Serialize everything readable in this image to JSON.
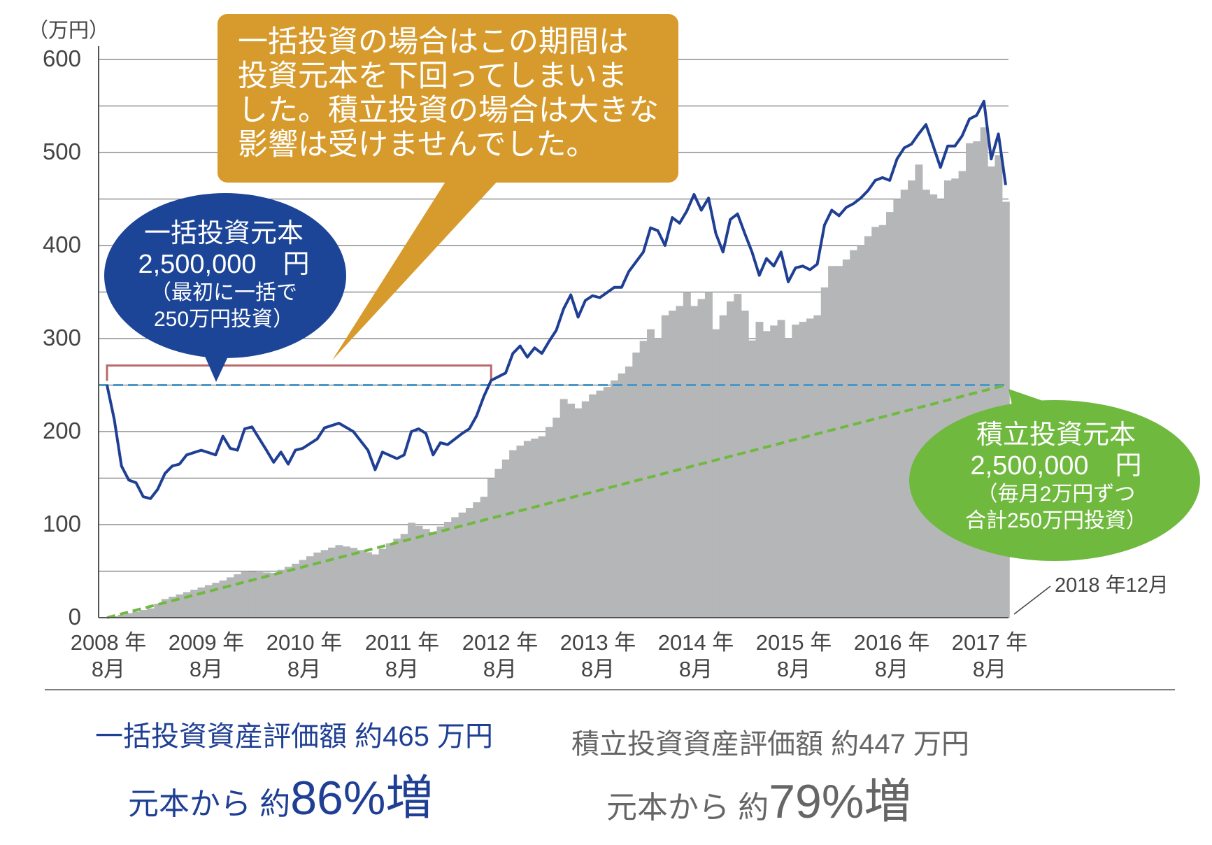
{
  "chart_data": {
    "type": "line+bar",
    "ylabel": "（万円）",
    "ylim": [
      0,
      600
    ],
    "yticks": [
      "0",
      "100",
      "200",
      "300",
      "400",
      "500",
      "600"
    ],
    "grid": true,
    "xticks": [
      {
        "year": "2008 年",
        "month": "8月"
      },
      {
        "year": "2009 年",
        "month": "8月"
      },
      {
        "year": "2010 年",
        "month": "8月"
      },
      {
        "year": "2011 年",
        "month": "8月"
      },
      {
        "year": "2012 年",
        "month": "8月"
      },
      {
        "year": "2013 年",
        "month": "8月"
      },
      {
        "year": "2014 年",
        "month": "8月"
      },
      {
        "year": "2015 年",
        "month": "8月"
      },
      {
        "year": "2016 年",
        "month": "8月"
      },
      {
        "year": "2017 年",
        "month": "8月"
      }
    ],
    "end_label": "2018 年12月",
    "x_range": [
      "2008-08",
      "2018-12"
    ],
    "colors": {
      "lump_sum_line": "#1f3f94",
      "accumulation_bars": "#b4b6b7",
      "lump_principal": "#4a97c9",
      "accum_principal": "#70b93f",
      "bracket": "#b96a6a"
    },
    "lump_sum_principal": 250,
    "accumulation_principal": {
      "start": 0,
      "end": 250
    },
    "lump_sum_value": [
      [
        "2008-08",
        250
      ],
      [
        "2008-09",
        213
      ],
      [
        "2008-10",
        163
      ],
      [
        "2008-11",
        148
      ],
      [
        "2008-12",
        145
      ],
      [
        "2009-01",
        130
      ],
      [
        "2009-02",
        128
      ],
      [
        "2009-03",
        138
      ],
      [
        "2009-04",
        155
      ],
      [
        "2009-05",
        163
      ],
      [
        "2009-06",
        165
      ],
      [
        "2009-07",
        175
      ],
      [
        "2009-09",
        180
      ],
      [
        "2009-11",
        175
      ],
      [
        "2009-12",
        195
      ],
      [
        "2010-01",
        182
      ],
      [
        "2010-02",
        180
      ],
      [
        "2010-03",
        203
      ],
      [
        "2010-04",
        205
      ],
      [
        "2010-06",
        180
      ],
      [
        "2010-07",
        167
      ],
      [
        "2010-08",
        178
      ],
      [
        "2010-09",
        165
      ],
      [
        "2010-10",
        180
      ],
      [
        "2010-11",
        182
      ],
      [
        "2011-01",
        192
      ],
      [
        "2011-02",
        204
      ],
      [
        "2011-04",
        209
      ],
      [
        "2011-06",
        200
      ],
      [
        "2011-08",
        180
      ],
      [
        "2011-09",
        159
      ],
      [
        "2011-10",
        178
      ],
      [
        "2011-12",
        171
      ],
      [
        "2012-01",
        175
      ],
      [
        "2012-02",
        200
      ],
      [
        "2012-03",
        203
      ],
      [
        "2012-04",
        198
      ],
      [
        "2012-05",
        175
      ],
      [
        "2012-06",
        188
      ],
      [
        "2012-07",
        186
      ],
      [
        "2012-09",
        198
      ],
      [
        "2012-10",
        203
      ],
      [
        "2012-11",
        217
      ],
      [
        "2012-12",
        238
      ],
      [
        "2013-01",
        255
      ],
      [
        "2013-03",
        263
      ],
      [
        "2013-04",
        284
      ],
      [
        "2013-05",
        292
      ],
      [
        "2013-06",
        280
      ],
      [
        "2013-07",
        290
      ],
      [
        "2013-08",
        284
      ],
      [
        "2013-09",
        297
      ],
      [
        "2013-10",
        309
      ],
      [
        "2013-11",
        332
      ],
      [
        "2013-12",
        347
      ],
      [
        "2014-01",
        323
      ],
      [
        "2014-02",
        341
      ],
      [
        "2014-03",
        346
      ],
      [
        "2014-04",
        344
      ],
      [
        "2014-06",
        355
      ],
      [
        "2014-07",
        355
      ],
      [
        "2014-08",
        372
      ],
      [
        "2014-10",
        393
      ],
      [
        "2014-11",
        419
      ],
      [
        "2014-12",
        416
      ],
      [
        "2015-01",
        400
      ],
      [
        "2015-02",
        430
      ],
      [
        "2015-03",
        424
      ],
      [
        "2015-04",
        437
      ],
      [
        "2015-05",
        455
      ],
      [
        "2015-06",
        438
      ],
      [
        "2015-07",
        451
      ],
      [
        "2015-08",
        413
      ],
      [
        "2015-09",
        393
      ],
      [
        "2015-10",
        428
      ],
      [
        "2015-11",
        434
      ],
      [
        "2015-12",
        413
      ],
      [
        "2016-01",
        393
      ],
      [
        "2016-02",
        368
      ],
      [
        "2016-03",
        386
      ],
      [
        "2016-04",
        378
      ],
      [
        "2016-05",
        393
      ],
      [
        "2016-06",
        361
      ],
      [
        "2016-07",
        376
      ],
      [
        "2016-08",
        378
      ],
      [
        "2016-09",
        374
      ],
      [
        "2016-10",
        380
      ],
      [
        "2016-11",
        422
      ],
      [
        "2016-12",
        438
      ],
      [
        "2017-01",
        432
      ],
      [
        "2017-02",
        441
      ],
      [
        "2017-03",
        445
      ],
      [
        "2017-04",
        451
      ],
      [
        "2017-05",
        459
      ],
      [
        "2017-06",
        470
      ],
      [
        "2017-07",
        473
      ],
      [
        "2017-08",
        470
      ],
      [
        "2017-09",
        493
      ],
      [
        "2017-10",
        505
      ],
      [
        "2017-11",
        509
      ],
      [
        "2017-12",
        520
      ],
      [
        "2018-01",
        530
      ],
      [
        "2018-02",
        507
      ],
      [
        "2018-03",
        484
      ],
      [
        "2018-04",
        507
      ],
      [
        "2018-05",
        507
      ],
      [
        "2018-06",
        518
      ],
      [
        "2018-07",
        536
      ],
      [
        "2018-08",
        540
      ],
      [
        "2018-09",
        555
      ],
      [
        "2018-10",
        493
      ],
      [
        "2018-11",
        520
      ],
      [
        "2018-12",
        465
      ]
    ],
    "accumulation_value": [
      [
        "2008-08",
        0
      ],
      [
        "2008-10",
        3
      ],
      [
        "2009-02",
        10
      ],
      [
        "2009-04",
        20
      ],
      [
        "2009-08",
        30
      ],
      [
        "2009-12",
        40
      ],
      [
        "2010-03",
        50
      ],
      [
        "2010-07",
        48
      ],
      [
        "2010-10",
        58
      ],
      [
        "2011-01",
        70
      ],
      [
        "2011-04",
        78
      ],
      [
        "2011-06",
        75
      ],
      [
        "2011-09",
        68
      ],
      [
        "2011-11",
        80
      ],
      [
        "2012-01",
        90
      ],
      [
        "2012-02",
        102
      ],
      [
        "2012-05",
        92
      ],
      [
        "2012-06",
        98
      ],
      [
        "2012-08",
        108
      ],
      [
        "2012-10",
        118
      ],
      [
        "2012-12",
        130
      ],
      [
        "2013-01",
        150
      ],
      [
        "2013-02",
        160
      ],
      [
        "2013-04",
        180
      ],
      [
        "2013-06",
        190
      ],
      [
        "2013-08",
        195
      ],
      [
        "2013-10",
        215
      ],
      [
        "2013-11",
        235
      ],
      [
        "2014-01",
        225
      ],
      [
        "2014-03",
        240
      ],
      [
        "2014-05",
        248
      ],
      [
        "2014-06",
        255
      ],
      [
        "2014-08",
        270
      ],
      [
        "2014-09",
        285
      ],
      [
        "2014-11",
        310
      ],
      [
        "2014-12",
        300
      ],
      [
        "2015-01",
        325
      ],
      [
        "2015-03",
        335
      ],
      [
        "2015-04",
        350
      ],
      [
        "2015-05",
        335
      ],
      [
        "2015-07",
        350
      ],
      [
        "2015-08",
        310
      ],
      [
        "2015-10",
        340
      ],
      [
        "2015-11",
        348
      ],
      [
        "2015-12",
        330
      ],
      [
        "2016-01",
        298
      ],
      [
        "2016-02",
        318
      ],
      [
        "2016-03",
        308
      ],
      [
        "2016-05",
        320
      ],
      [
        "2016-06",
        300
      ],
      [
        "2016-07",
        315
      ],
      [
        "2016-08",
        318
      ],
      [
        "2016-10",
        325
      ],
      [
        "2016-11",
        355
      ],
      [
        "2016-12",
        378
      ],
      [
        "2017-01",
        378
      ],
      [
        "2017-02",
        385
      ],
      [
        "2017-03",
        395
      ],
      [
        "2017-04",
        400
      ],
      [
        "2017-05",
        410
      ],
      [
        "2017-06",
        420
      ],
      [
        "2017-07",
        422
      ],
      [
        "2017-09",
        450
      ],
      [
        "2017-10",
        460
      ],
      [
        "2017-11",
        470
      ],
      [
        "2017-12",
        487
      ],
      [
        "2018-01",
        460
      ],
      [
        "2018-03",
        450
      ],
      [
        "2018-04",
        470
      ],
      [
        "2018-05",
        472
      ],
      [
        "2018-06",
        480
      ],
      [
        "2018-07",
        510
      ],
      [
        "2018-08",
        512
      ],
      [
        "2018-09",
        527
      ],
      [
        "2018-10",
        485
      ],
      [
        "2018-11",
        497
      ],
      [
        "2018-12",
        447
      ]
    ]
  },
  "callout": {
    "lines": [
      "一括投資の場合はこの期間は",
      "投資元本を下回ってしまいま",
      "した。積立投資の場合は大きな",
      "影響は受けませんでした。"
    ],
    "color": "#d69b2c"
  },
  "lump_bubble": {
    "title": "一括投資元本",
    "amount": "2,500,000　円",
    "note1": "（最初に一括で",
    "note2": "250万円投資）",
    "color": "#1c4597"
  },
  "accum_bubble": {
    "title": "積立投資元本",
    "amount": "2,500,000　円",
    "note1": "（毎月2万円ずつ",
    "note2": "合計250万円投資）",
    "color": "#70b93f"
  },
  "summary": {
    "lump": {
      "label": "一括投資資産評価額 約465 万円",
      "prefix": "元本から 約",
      "value": "86%増"
    },
    "accum": {
      "label": "積立投資資産評価額 約447 万円",
      "prefix": "元本から 約",
      "value": "79%増"
    }
  }
}
